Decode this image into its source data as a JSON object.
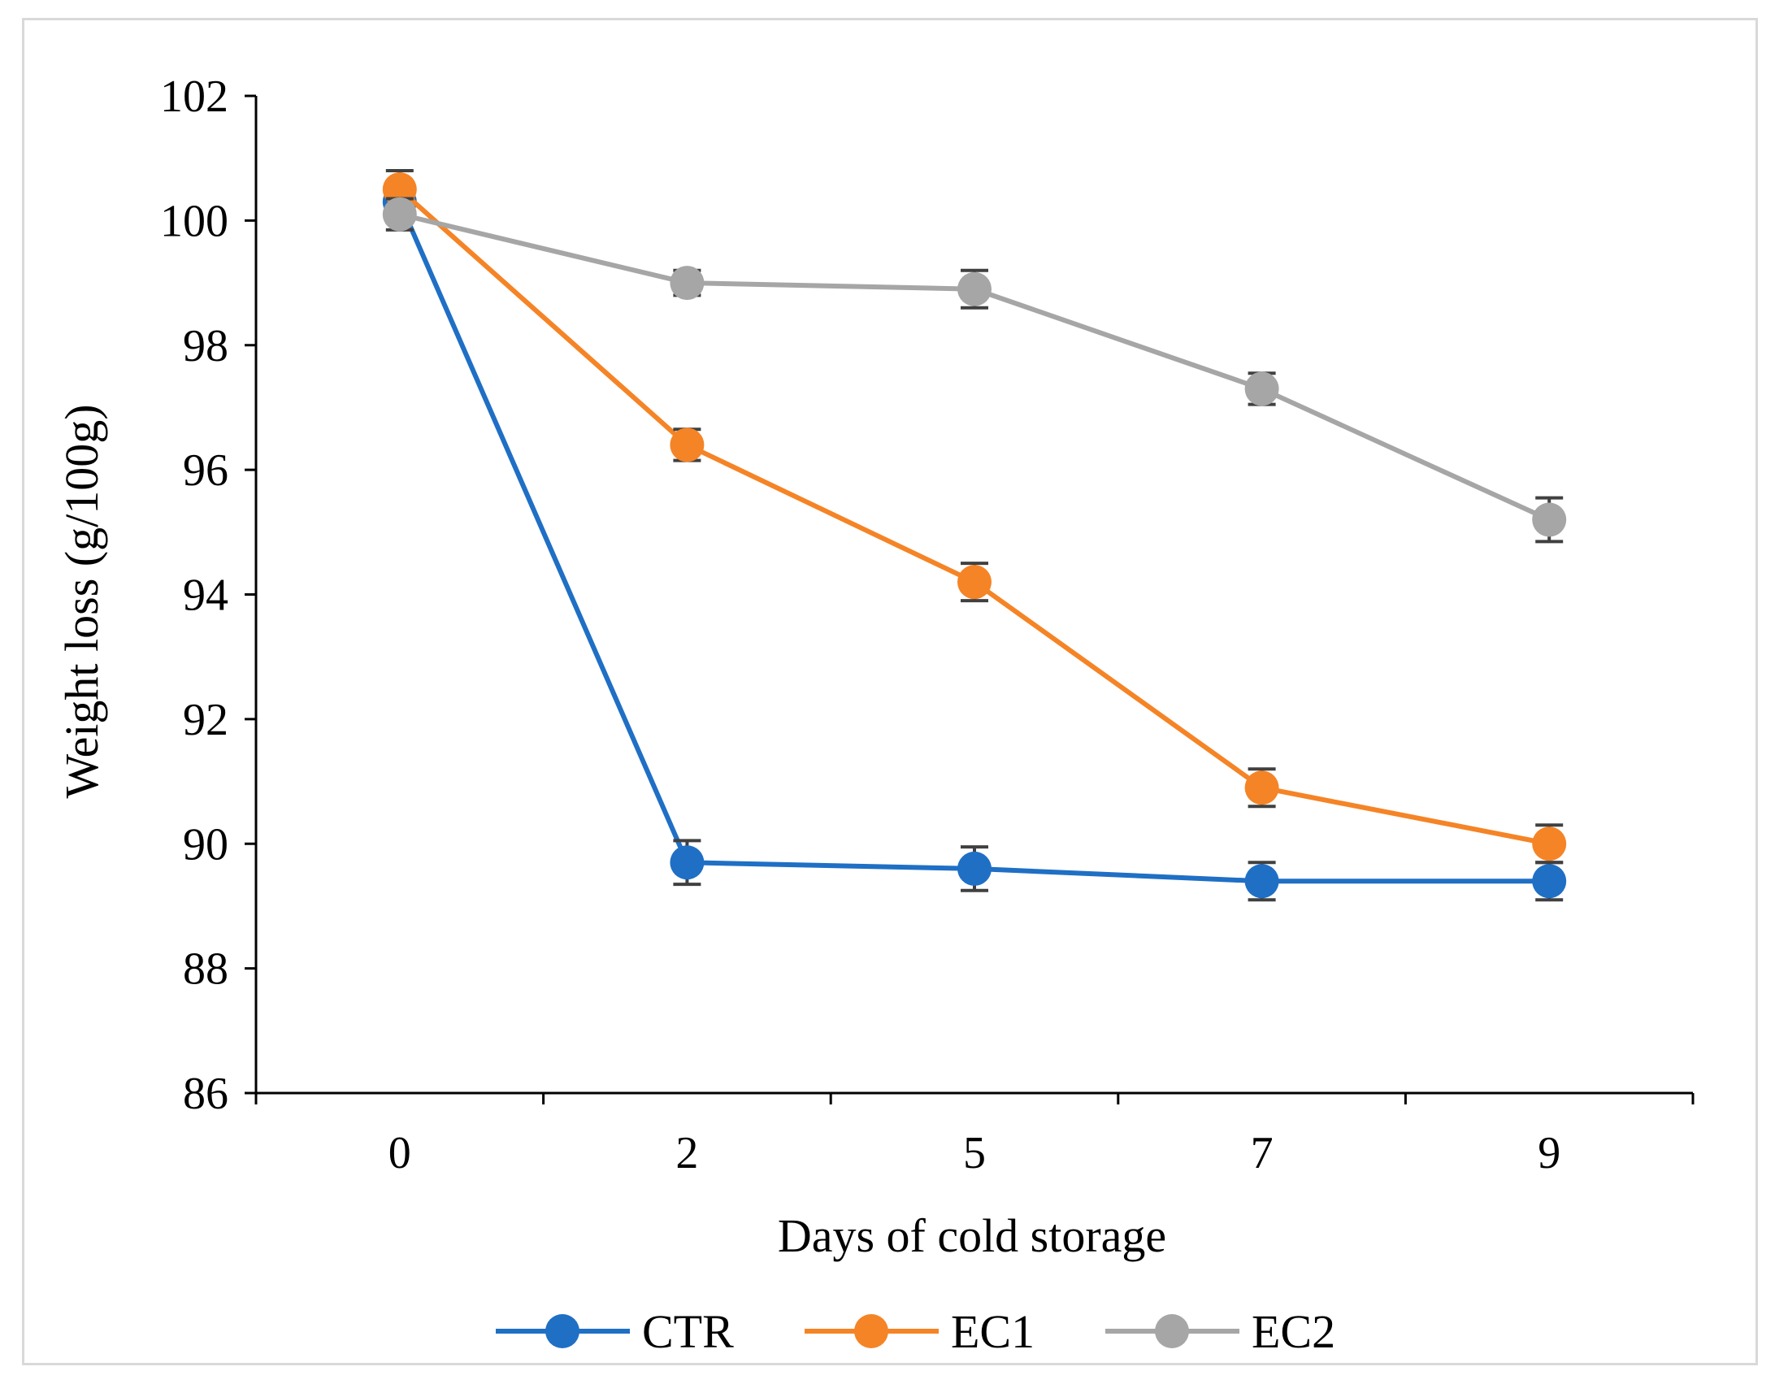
{
  "chart_data": {
    "type": "line",
    "title": "",
    "xlabel": "Days of cold storage",
    "ylabel": "Weight loss (g/100g)",
    "categories": [
      "0",
      "2",
      "5",
      "7",
      "9"
    ],
    "ylim": [
      86,
      102
    ],
    "yticks": [
      "86",
      "88",
      "90",
      "92",
      "94",
      "96",
      "98",
      "100",
      "102"
    ],
    "grid": false,
    "legend_position": "bottom",
    "error_bars": true,
    "series": [
      {
        "name": "CTR",
        "color": "#1f6fc5",
        "values": [
          100.3,
          89.7,
          89.6,
          89.4,
          89.4
        ],
        "errors": [
          0.3,
          0.35,
          0.35,
          0.3,
          0.3
        ]
      },
      {
        "name": "EC1",
        "color": "#f58426",
        "values": [
          100.5,
          96.4,
          94.2,
          90.9,
          90.0
        ],
        "errors": [
          0.3,
          0.25,
          0.3,
          0.3,
          0.3
        ]
      },
      {
        "name": "EC2",
        "color": "#a6a6a6",
        "values": [
          100.1,
          99.0,
          98.9,
          97.3,
          95.2
        ],
        "errors": [
          0.25,
          0.2,
          0.3,
          0.25,
          0.35
        ]
      }
    ]
  }
}
